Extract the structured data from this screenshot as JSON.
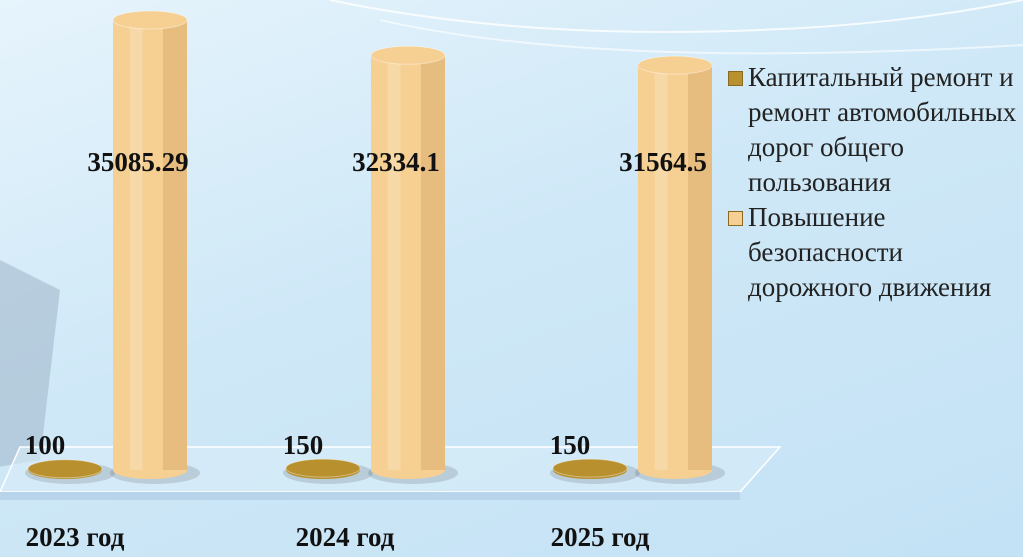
{
  "chart_data": {
    "type": "cylinder-bar",
    "categories": [
      "2023 год",
      "2024 год",
      "2025 год"
    ],
    "series": [
      {
        "name": "Капитальный ремонт и ремонт автомобильных дорог общего пользования",
        "color": "#b8902e",
        "values": [
          100,
          150,
          150
        ]
      },
      {
        "name": "Повышение безопасности дорожного движения",
        "color": "#f6cf92",
        "values": [
          35085.29,
          32334.1,
          31564.5
        ]
      }
    ]
  }
}
